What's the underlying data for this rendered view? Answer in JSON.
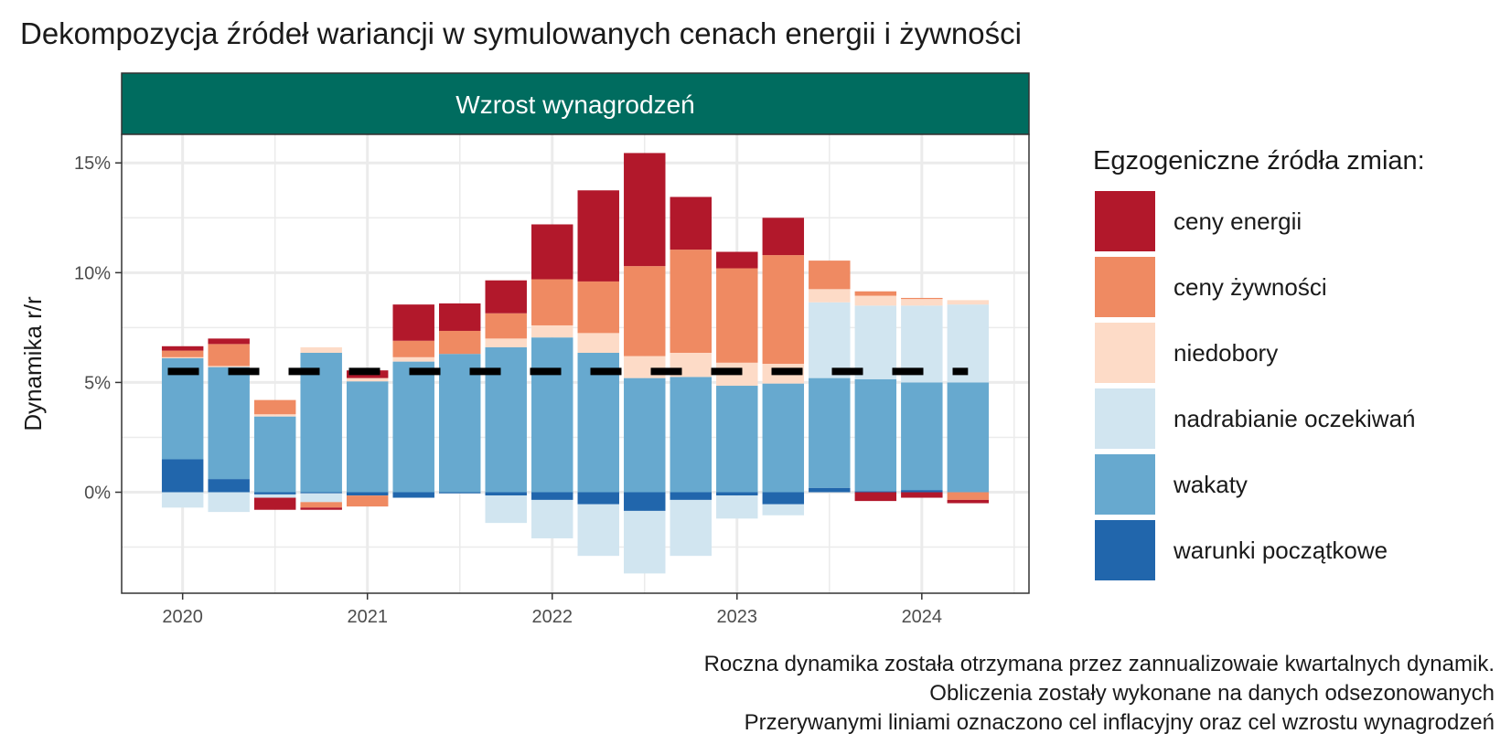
{
  "chart_data": {
    "type": "bar",
    "stacked": true,
    "title": "Dekompozycja źródeł wariancji w symulowanych cenach energii i żywności",
    "facet_label": "Wzrost wynagrodzeń",
    "ylabel": "Dynamika r/r",
    "xlabel": "",
    "ylim": [
      -4.6,
      16.3
    ],
    "yticks": [
      0,
      5,
      10,
      15
    ],
    "ytick_labels": [
      "0%",
      "5%",
      "10%",
      "15%"
    ],
    "xticks": [
      2020,
      2021,
      2022,
      2023,
      2024
    ],
    "xtick_labels": [
      "2020",
      "2021",
      "2022",
      "2023",
      "2024"
    ],
    "xlim": [
      2019.67,
      2024.58
    ],
    "x": [
      2020.0,
      2020.25,
      2020.5,
      2020.75,
      2021.0,
      2021.25,
      2021.5,
      2021.75,
      2022.0,
      2022.25,
      2022.5,
      2022.75,
      2023.0,
      2023.25,
      2023.5,
      2023.75,
      2024.0,
      2024.25
    ],
    "legend_title": "Egzogeniczne źródła zmian:",
    "legend_position": "right",
    "grid": true,
    "series": [
      {
        "name": "warunki początkowe",
        "color": "#2166ac",
        "values": [
          1.5,
          0.6,
          -0.1,
          -0.05,
          -0.15,
          -0.25,
          -0.05,
          -0.15,
          -0.35,
          -0.55,
          -0.85,
          -0.35,
          -0.15,
          -0.55,
          0.2,
          0.05,
          0.1,
          0.0
        ]
      },
      {
        "name": "wakaty",
        "color": "#67a9cf",
        "values": [
          4.6,
          5.1,
          3.45,
          6.35,
          5.05,
          5.95,
          6.3,
          6.6,
          7.05,
          6.35,
          5.2,
          5.25,
          4.85,
          4.95,
          5.0,
          5.1,
          4.9,
          5.0
        ]
      },
      {
        "name": "nadrabianie oczekiwań",
        "color": "#d1e5f0",
        "values": [
          -0.7,
          -0.9,
          -0.15,
          -0.4,
          0.0,
          0.0,
          0.0,
          -1.25,
          -1.75,
          -2.35,
          -2.85,
          -2.55,
          -1.05,
          -0.5,
          3.45,
          3.35,
          3.5,
          3.55
        ]
      },
      {
        "name": "niedobory",
        "color": "#fddbc7",
        "values": [
          0.05,
          0.05,
          0.1,
          0.25,
          0.15,
          0.2,
          0.0,
          0.4,
          0.55,
          0.9,
          1.0,
          1.1,
          1.05,
          0.9,
          0.6,
          0.45,
          0.3,
          0.2
        ]
      },
      {
        "name": "ceny żywności",
        "color": "#ef8a62",
        "values": [
          0.3,
          1.0,
          0.65,
          -0.25,
          -0.5,
          0.75,
          1.05,
          1.15,
          2.1,
          2.35,
          4.1,
          4.7,
          4.3,
          4.95,
          1.3,
          0.2,
          0.05,
          -0.35
        ]
      },
      {
        "name": "ceny energii",
        "color": "#b2182b",
        "values": [
          0.2,
          0.25,
          -0.55,
          -0.1,
          0.35,
          1.65,
          1.25,
          1.5,
          2.5,
          4.15,
          5.15,
          2.4,
          0.75,
          1.7,
          0.0,
          -0.4,
          -0.25,
          -0.15
        ]
      }
    ],
    "target_line": {
      "value": 5.5,
      "x_from": 2019.92,
      "x_to": 2024.25,
      "color": "#000000"
    }
  },
  "captions": [
    "Roczna dynamika została otrzymana przez zannualizowaie kwartalnych dynamik.",
    "Obliczenia zostały wykonane na danych odsezonowanych",
    "Przerywanymi liniami oznaczono cel inflacyjny oraz cel wzrostu wynagrodzeń"
  ]
}
